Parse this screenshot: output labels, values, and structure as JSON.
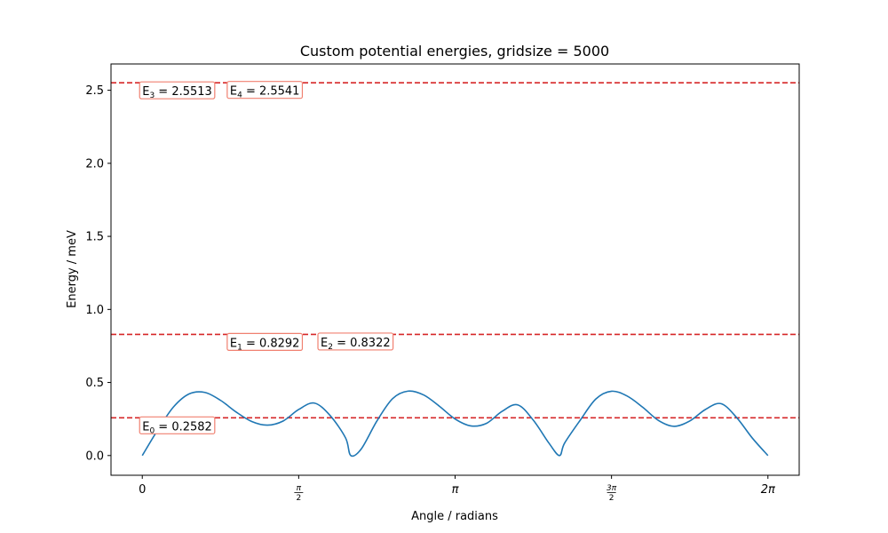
{
  "chart_data": {
    "type": "line",
    "title": "Custom potential energies, gridsize = 5000",
    "xlabel": "Angle / radians",
    "ylabel": "Energy / meV",
    "xlim": [
      -0.2,
      4.2
    ],
    "ylim": [
      -0.135,
      2.68
    ],
    "x_ticks": [
      {
        "value": 0,
        "label": "0",
        "kind": "plain"
      },
      {
        "value": 1,
        "num": "π",
        "den": "2",
        "kind": "frac"
      },
      {
        "value": 2,
        "label": "π",
        "kind": "pi"
      },
      {
        "value": 3,
        "num": "3π",
        "den": "2",
        "kind": "frac"
      },
      {
        "value": 4,
        "label": "2π",
        "kind": "pi"
      }
    ],
    "y_ticks": [
      {
        "value": 0.0,
        "label": "0.0"
      },
      {
        "value": 0.5,
        "label": "0.5"
      },
      {
        "value": 1.0,
        "label": "1.0"
      },
      {
        "value": 1.5,
        "label": "1.5"
      },
      {
        "value": 2.0,
        "label": "2.0"
      },
      {
        "value": 2.5,
        "label": "2.5"
      }
    ],
    "grid": false,
    "series": [
      {
        "color": "#1f77b4",
        "x": [
          0.0,
          0.1,
          0.2,
          0.3,
          0.4,
          0.5,
          0.6,
          0.7,
          0.8,
          0.9,
          1.0,
          1.1,
          1.2,
          1.3,
          1.333,
          1.4,
          1.5,
          1.6,
          1.7,
          1.8,
          1.9,
          2.0,
          2.1,
          2.2,
          2.3,
          2.4,
          2.5,
          2.6,
          2.667,
          2.7,
          2.8,
          2.9,
          3.0,
          3.1,
          3.2,
          3.3,
          3.4,
          3.5,
          3.6,
          3.7,
          3.8,
          3.9,
          4.0
        ],
        "y": [
          0.0,
          0.177,
          0.333,
          0.422,
          0.432,
          0.378,
          0.298,
          0.233,
          0.208,
          0.236,
          0.315,
          0.359,
          0.275,
          0.12,
          0.0,
          0.045,
          0.236,
          0.389,
          0.441,
          0.414,
          0.337,
          0.25,
          0.203,
          0.22,
          0.302,
          0.347,
          0.242,
          0.085,
          0.0,
          0.085,
          0.242,
          0.387,
          0.44,
          0.407,
          0.33,
          0.24,
          0.2,
          0.236,
          0.315,
          0.355,
          0.26,
          0.12,
          0.0
        ]
      }
    ],
    "energy_lines": {
      "color": "#d62728",
      "values": [
        0.2582,
        0.8292,
        2.5513
      ]
    },
    "annotations": [
      {
        "base": "E",
        "sub": "0",
        "text": " = 0.2582",
        "x": 0.0,
        "y": 0.2582
      },
      {
        "base": "E",
        "sub": "1",
        "text": " = 0.8292",
        "x": 0.56,
        "y": 0.8292
      },
      {
        "base": "E",
        "sub": "2",
        "text": " = 0.8322",
        "x": 1.14,
        "y": 0.8322
      },
      {
        "base": "E",
        "sub": "3",
        "text": " = 2.5513",
        "x": 0.0,
        "y": 2.5513
      },
      {
        "base": "E",
        "sub": "4",
        "text": " = 2.5541",
        "x": 0.56,
        "y": 2.5541
      }
    ]
  }
}
